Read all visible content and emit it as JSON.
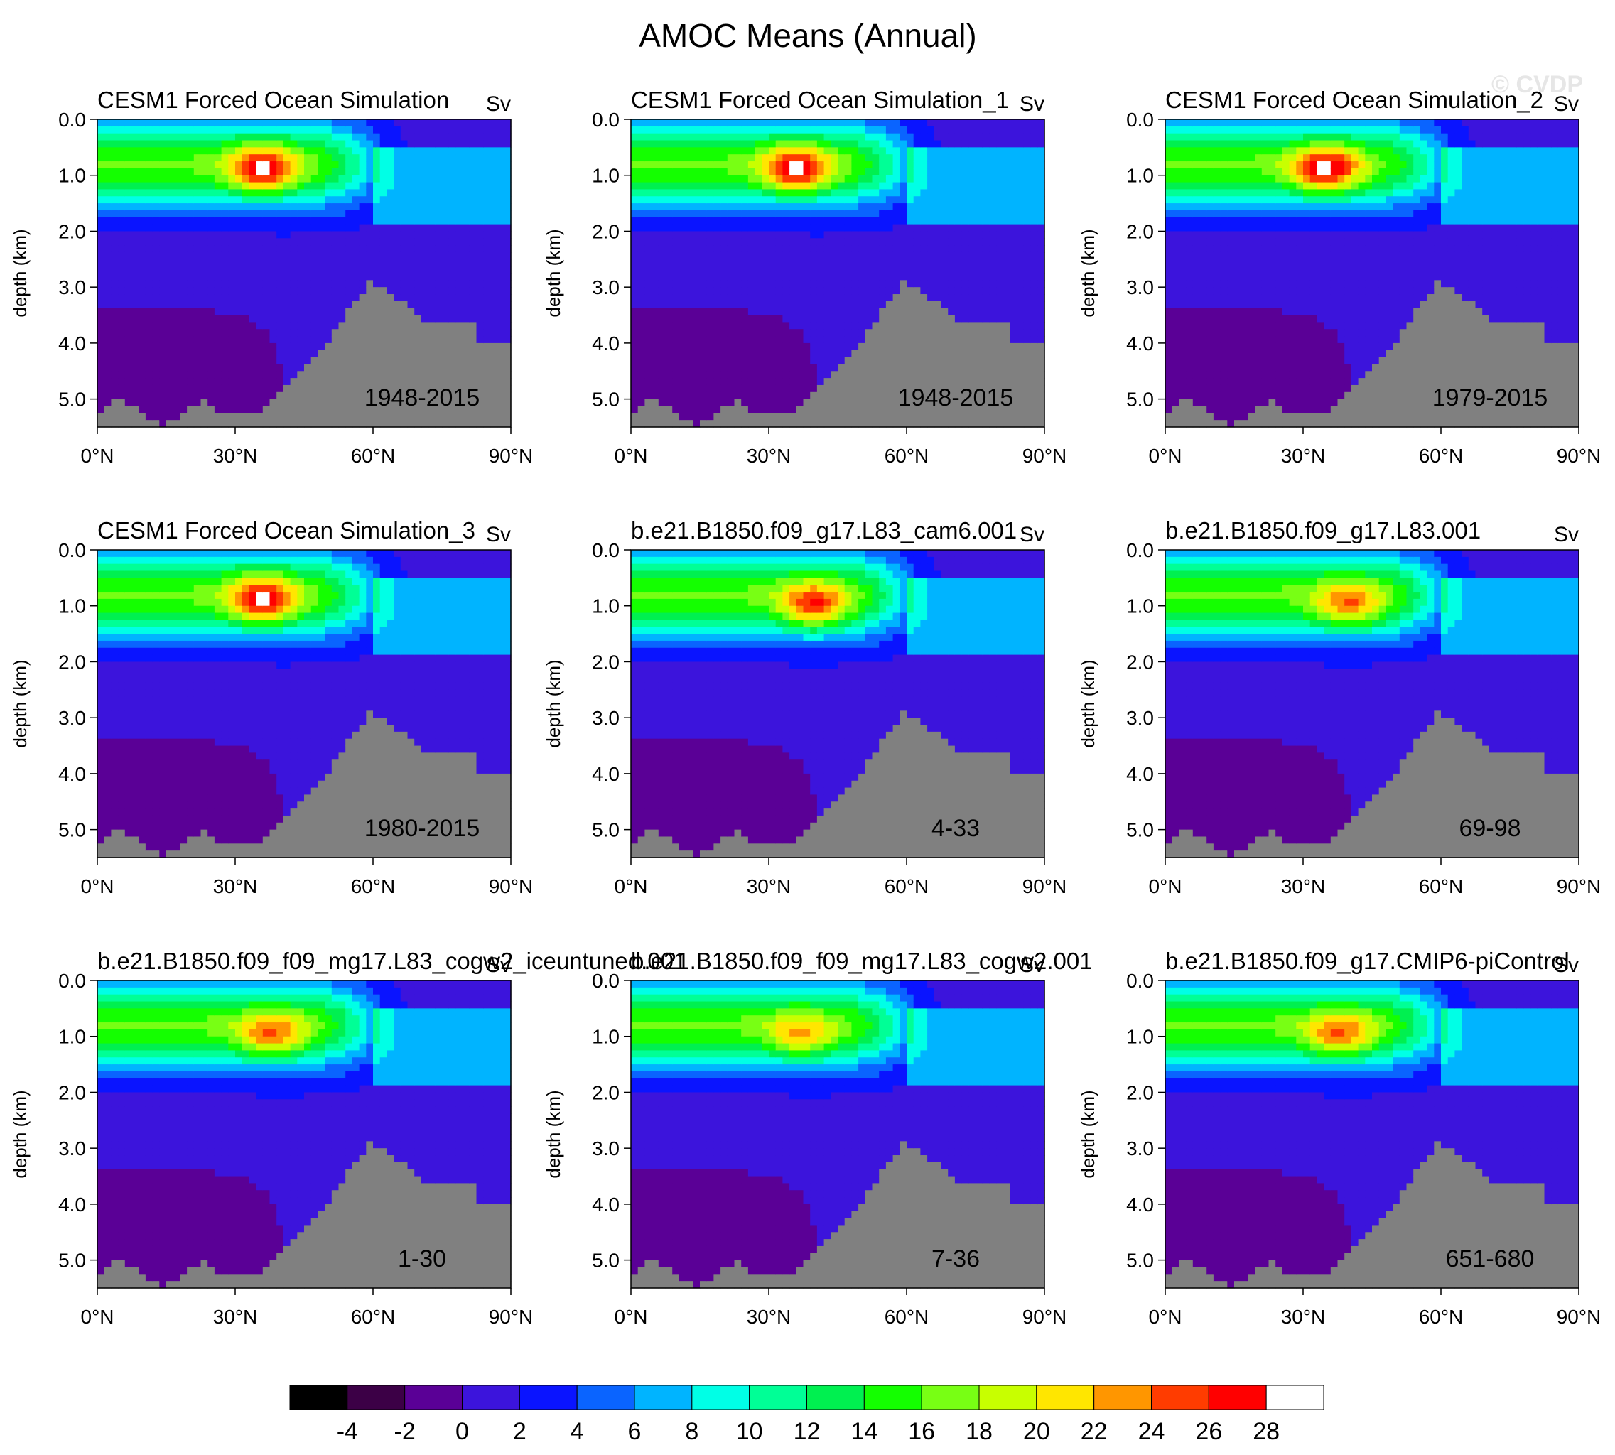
{
  "figure": {
    "title": "AMOC Means (Annual)",
    "watermark": "© CVDP"
  },
  "chart_data": {
    "type": "contour-panels",
    "title": "AMOC Means (Annual)",
    "units": "Sv",
    "ylabel": "depth (km)",
    "y_ticks": [
      "0.0",
      "1.0",
      "2.0",
      "3.0",
      "4.0",
      "5.0"
    ],
    "x_ticks": [
      "0°N",
      "30°N",
      "60°N",
      "90°N"
    ],
    "xlim": [
      0,
      90
    ],
    "ylim_km": [
      0,
      5.5
    ],
    "panels": [
      {
        "title": "CESM1 Forced Ocean Simulation",
        "units": "Sv",
        "period": "1948-2015",
        "max_sv": 28,
        "peak_lat": 36,
        "peak_depth_km": 0.9
      },
      {
        "title": "CESM1 Forced Ocean Simulation_1",
        "units": "Sv",
        "period": "1948-2015",
        "max_sv": 28,
        "peak_lat": 36,
        "peak_depth_km": 0.9
      },
      {
        "title": "CESM1 Forced Ocean Simulation_2",
        "units": "Sv",
        "period": "1979-2015",
        "max_sv": 28,
        "peak_lat": 35,
        "peak_depth_km": 0.9
      },
      {
        "title": "CESM1 Forced Ocean Simulation_3",
        "units": "Sv",
        "period": "1980-2015",
        "max_sv": 28,
        "peak_lat": 36,
        "peak_depth_km": 0.9
      },
      {
        "title": "b.e21.B1850.f09_g17.L83_cam6.001",
        "units": "Sv",
        "period": "4-33",
        "max_sv": 26,
        "peak_lat": 40,
        "peak_depth_km": 1.0
      },
      {
        "title": "b.e21.B1850.f09_g17.L83.001",
        "units": "Sv",
        "period": "69-98",
        "max_sv": 24,
        "peak_lat": 40,
        "peak_depth_km": 1.0
      },
      {
        "title": "b.e21.B1850.f09_f09_mg17.L83_cogw2_iceuntuned.001",
        "units": "Sv",
        "period": "1-30",
        "max_sv": 24,
        "peak_lat": 38,
        "peak_depth_km": 1.0
      },
      {
        "title": "b.e21.B1850.f09_f09_mg17.L83_cogw2.001",
        "units": "Sv",
        "period": "7-36",
        "max_sv": 22,
        "peak_lat": 37,
        "peak_depth_km": 1.0
      },
      {
        "title": "b.e21.B1850.f09_g17.CMIP6-piControl",
        "units": "Sv",
        "period": "651-680",
        "max_sv": 24,
        "peak_lat": 38,
        "peak_depth_km": 1.0
      }
    ],
    "colorbar": {
      "labels": [
        "-4",
        "-2",
        "0",
        "2",
        "4",
        "6",
        "8",
        "10",
        "12",
        "14",
        "16",
        "18",
        "20",
        "22",
        "24",
        "26",
        "28"
      ],
      "colors": [
        "#000000",
        "#3c0046",
        "#5a0096",
        "#3c14dc",
        "#0a14ff",
        "#0a64ff",
        "#00b4ff",
        "#00ffe6",
        "#00ff96",
        "#00f050",
        "#14ff00",
        "#78ff14",
        "#c8ff00",
        "#ffe600",
        "#ff9600",
        "#ff3c00",
        "#ff0000",
        "#ffffff"
      ]
    }
  }
}
